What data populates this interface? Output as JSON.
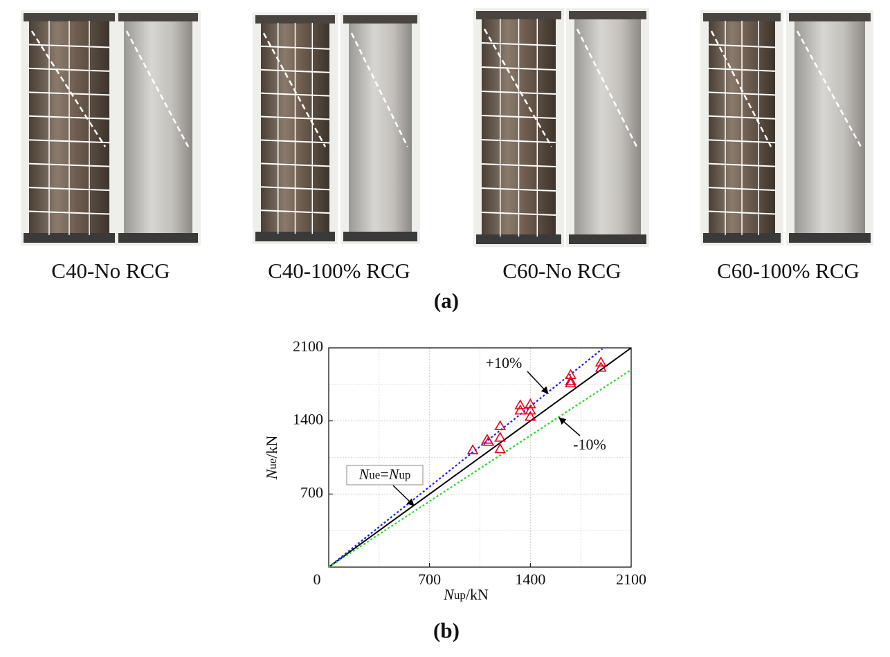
{
  "photos": {
    "captions": [
      "C40-No RCG",
      "C40-100% RCG",
      "C60-No RCG",
      "C60-100% RCG"
    ]
  },
  "figure_labels": [
    "(a)",
    "(b)"
  ],
  "chart_data": {
    "type": "scatter",
    "xlabel": {
      "symbol": "N",
      "subscript": "up",
      "unit": "/kN"
    },
    "ylabel": {
      "symbol": "N",
      "subscript": "ue",
      "unit": "/kN"
    },
    "xlim": [
      0,
      2100
    ],
    "ylim": [
      0,
      2100
    ],
    "xticks": [
      0,
      700,
      1400,
      2100
    ],
    "yticks": [
      700,
      1400,
      2100
    ],
    "minor_grid": [
      350,
      1050,
      1750
    ],
    "grid": true,
    "series": [
      {
        "color": "#e8001c",
        "marker": "triangle",
        "x": [
          1000,
          1100,
          1110,
          1190,
          1190,
          1190,
          1330,
          1330,
          1400,
          1400,
          1400,
          1680,
          1680,
          1680,
          1890,
          1890
        ],
        "values": [
          1120,
          1220,
          1200,
          1350,
          1240,
          1130,
          1550,
          1500,
          1560,
          1500,
          1440,
          1840,
          1780,
          1760,
          1960,
          1910
        ]
      }
    ],
    "reference_lines": [
      {
        "x": [
          0,
          2100
        ],
        "values": [
          0,
          2100
        ],
        "color": "#000000",
        "dash": false
      },
      {
        "x": [
          0,
          1900
        ],
        "values": [
          0,
          2090
        ],
        "color": "#1a1aff",
        "dash": true
      },
      {
        "x": [
          0,
          2100
        ],
        "values": [
          0,
          1890
        ],
        "color": "#22dd22",
        "dash": true
      }
    ],
    "annotations": {
      "plus": "+10%",
      "minus": "-10%",
      "equal": {
        "left": "N",
        "left_sub": "ue",
        "eq": "=",
        "right": "N",
        "right_sub": "up"
      }
    }
  }
}
